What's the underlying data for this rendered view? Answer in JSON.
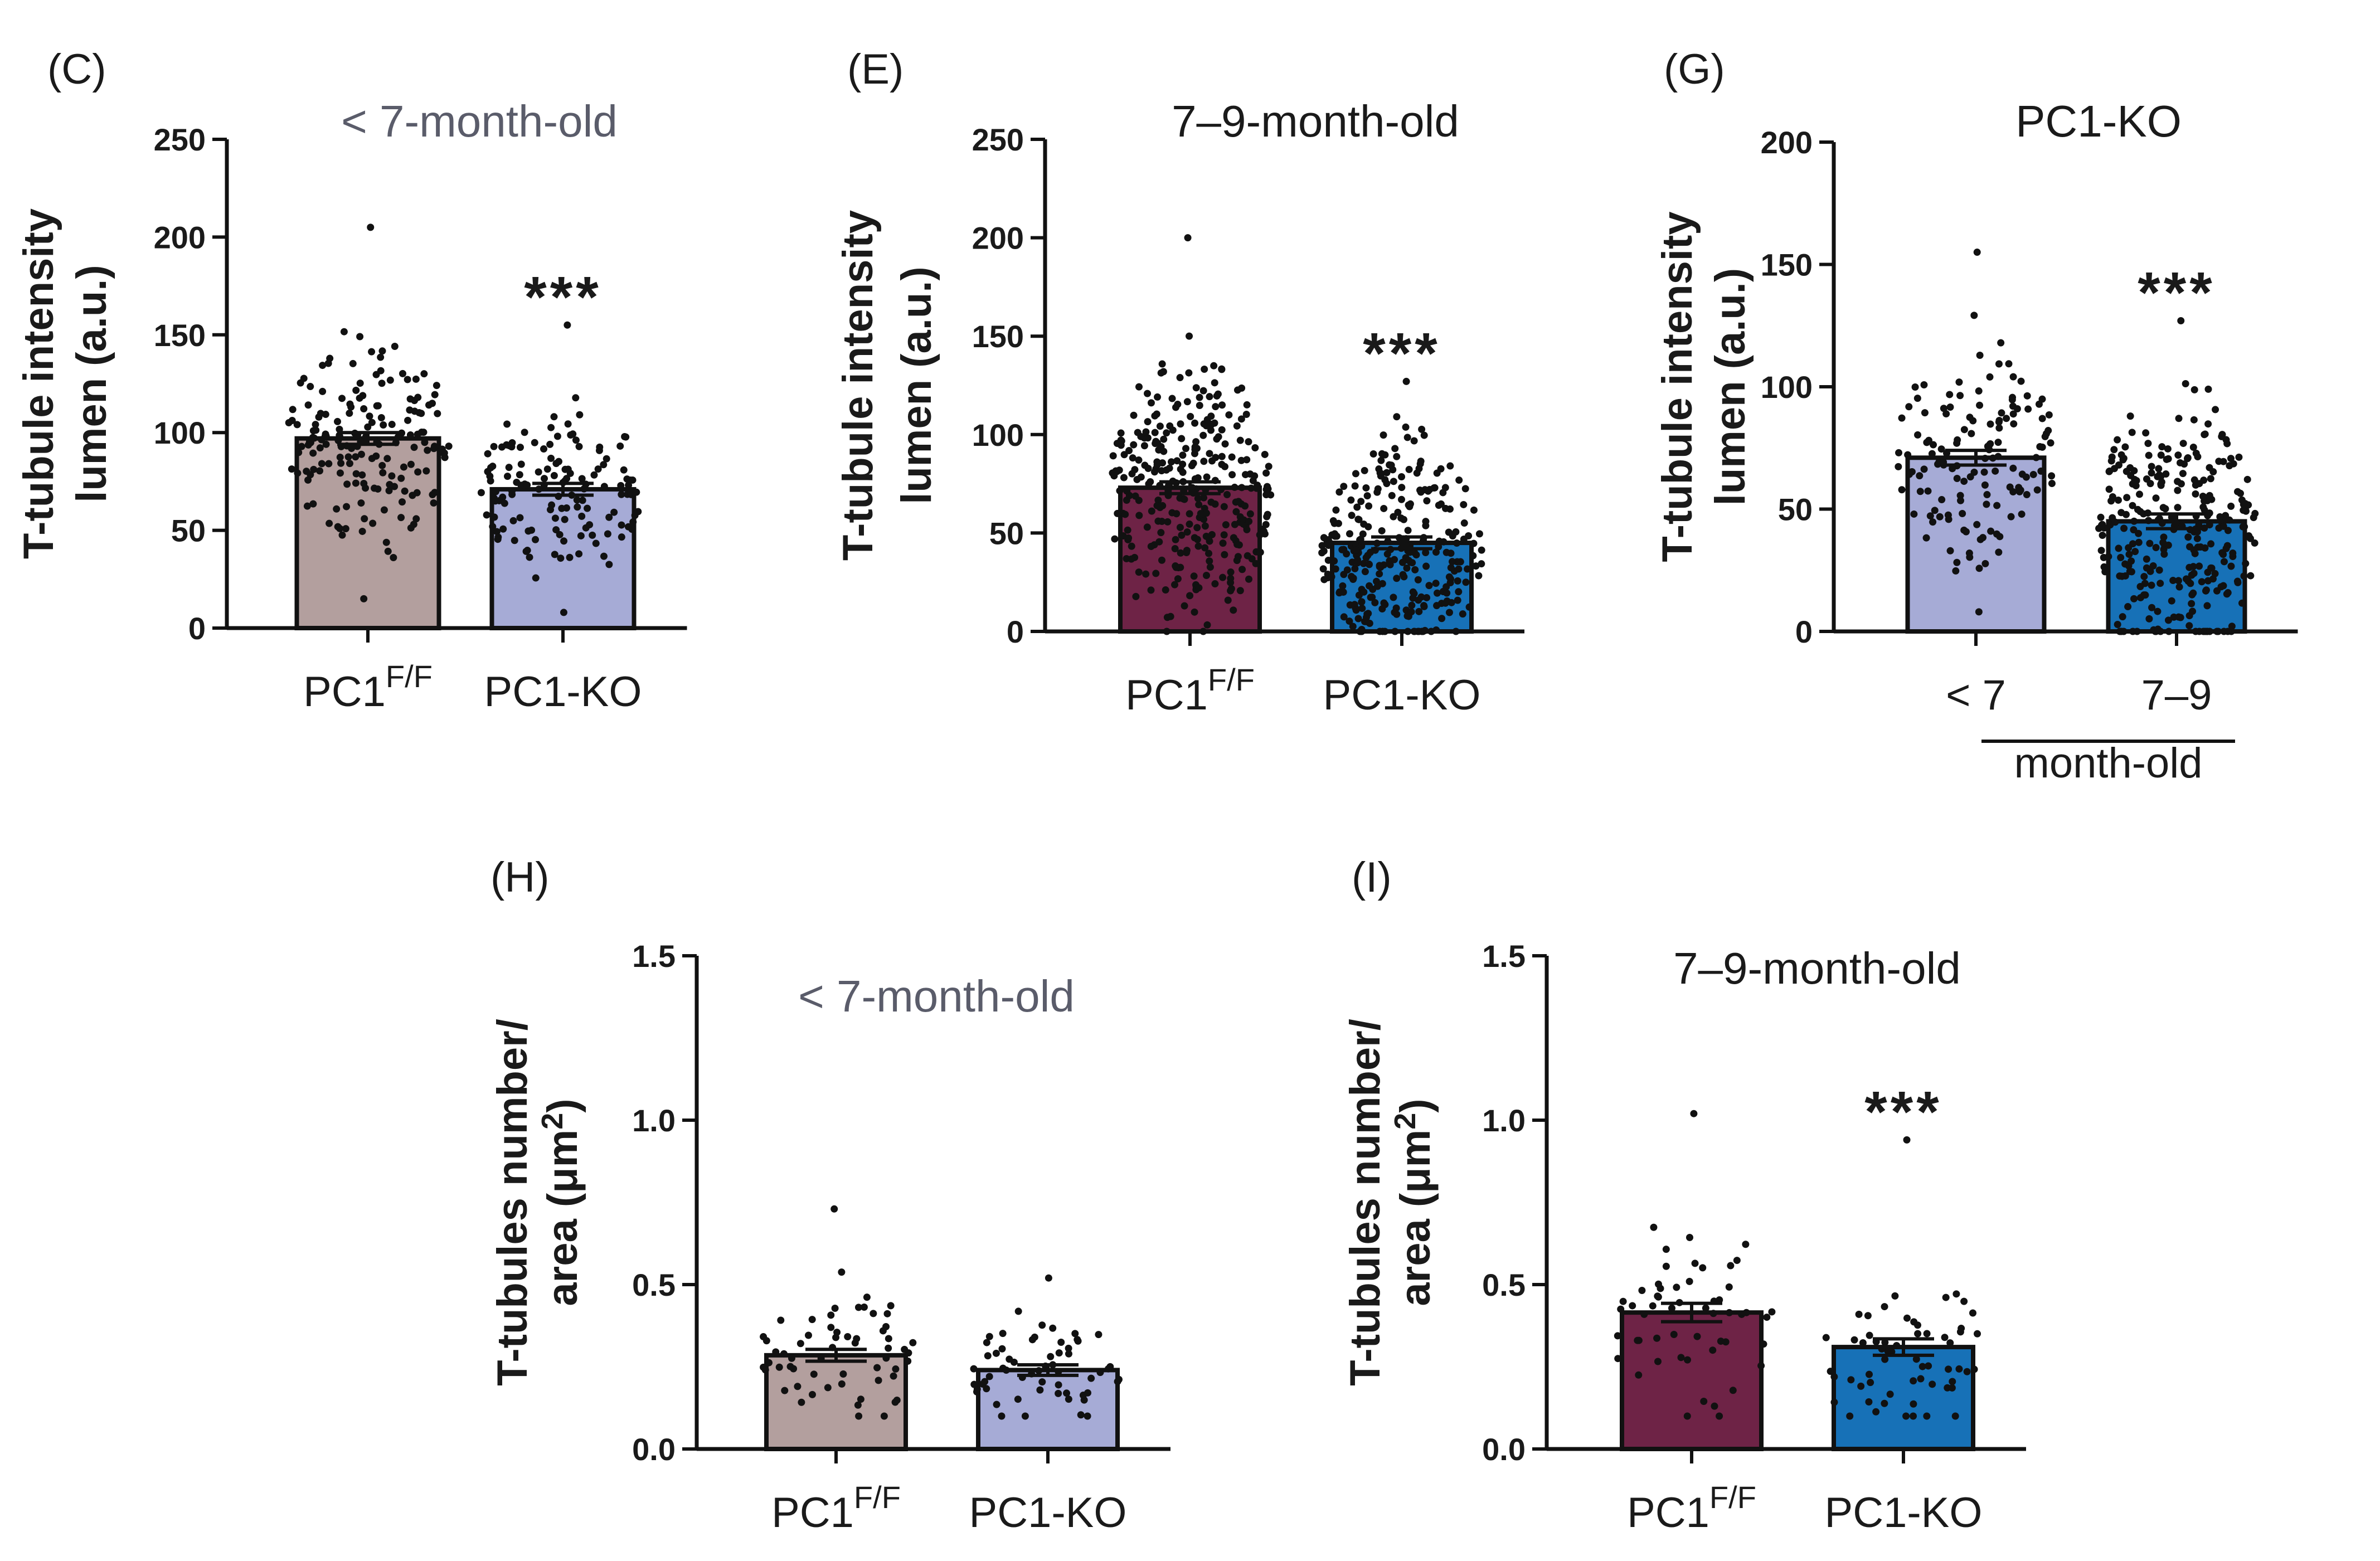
{
  "colors": {
    "taupe": "#b39f9e",
    "lavender": "#a6abd6",
    "maroon": "#6e2346",
    "blue": "#1771b7"
  },
  "chart_data": [
    {
      "panel": "(C)",
      "type": "bar",
      "title": "< 7-month-old",
      "ylabel": [
        "T-tubule intensity",
        "lumen (a.u.)"
      ],
      "ylim": [
        0,
        250
      ],
      "yticks": [
        0,
        50,
        100,
        150,
        200,
        250
      ],
      "categories": [
        {
          "label": "PC1",
          "sup": "F/F",
          "value": 97,
          "sem": 3,
          "color": "taupe",
          "n": 180,
          "dmin": 15,
          "dmax": 205,
          "center": 95,
          "spread": 30
        },
        {
          "label": "PC1-KO",
          "sup": "",
          "value": 71,
          "sem": 3,
          "color": "lavender",
          "n": 140,
          "dmin": 8,
          "dmax": 155,
          "center": 72,
          "spread": 25
        }
      ],
      "significance": [
        {
          "category": 1,
          "label": "***"
        }
      ]
    },
    {
      "panel": "(E)",
      "type": "bar",
      "title": "7–9-month-old",
      "ylabel": [
        "T-tubule intensity",
        "lumen (a.u.)"
      ],
      "ylim": [
        0,
        250
      ],
      "yticks": [
        0,
        50,
        100,
        150,
        200,
        250
      ],
      "categories": [
        {
          "label": "PC1",
          "sup": "F/F",
          "value": 73,
          "sem": 3,
          "color": "maroon",
          "n": 320,
          "dmin": 0,
          "dmax": 200,
          "center": 70,
          "spread": 38
        },
        {
          "label": "PC1-KO",
          "sup": "",
          "value": 45,
          "sem": 3,
          "color": "blue",
          "n": 300,
          "dmin": 0,
          "dmax": 127,
          "center": 40,
          "spread": 32
        }
      ],
      "significance": [
        {
          "category": 1,
          "label": "***"
        }
      ]
    },
    {
      "panel": "(G)",
      "type": "bar",
      "title": "PC1-KO",
      "ylabel": [
        "T-tubule intensity",
        "lumen (a.u.)"
      ],
      "ylim": [
        0,
        200
      ],
      "yticks": [
        0,
        50,
        100,
        150,
        200
      ],
      "categories": [
        {
          "label": "< 7",
          "sup": "",
          "value": 71,
          "sem": 3,
          "color": "lavender",
          "n": 140,
          "dmin": 8,
          "dmax": 155,
          "center": 72,
          "spread": 25
        },
        {
          "label": "7–9",
          "sup": "",
          "value": 45,
          "sem": 3,
          "color": "blue",
          "n": 300,
          "dmin": 0,
          "dmax": 127,
          "center": 40,
          "spread": 32
        }
      ],
      "group_label": "month-old",
      "significance": [
        {
          "category": 1,
          "label": "***"
        }
      ]
    },
    {
      "panel": "(H)",
      "type": "bar",
      "title": "< 7-month-old",
      "ylabel": [
        "T-tubules number/",
        "area (μm²)"
      ],
      "ylim": [
        0,
        1.5
      ],
      "yticks": [
        "0.0",
        "0.5",
        "1.0",
        "1.5"
      ],
      "categories": [
        {
          "label": "PC1",
          "sup": "F/F",
          "value": 0.285,
          "sem": 0.018,
          "color": "taupe",
          "n": 60,
          "dmin": 0.1,
          "dmax": 0.73,
          "center": 0.28,
          "spread": 0.12
        },
        {
          "label": "PC1-KO",
          "sup": "",
          "value": 0.24,
          "sem": 0.016,
          "color": "lavender",
          "n": 60,
          "dmin": 0.1,
          "dmax": 0.52,
          "center": 0.24,
          "spread": 0.1
        }
      ],
      "significance": []
    },
    {
      "panel": "(I)",
      "type": "bar",
      "title": "7–9-month-old",
      "ylabel": [
        "T-tubules number/",
        "area (μm²)"
      ],
      "ylim": [
        0,
        1.5
      ],
      "yticks": [
        "0.0",
        "0.5",
        "1.0",
        "1.5"
      ],
      "categories": [
        {
          "label": "PC1",
          "sup": "F/F",
          "value": 0.415,
          "sem": 0.028,
          "color": "maroon",
          "n": 55,
          "dmin": 0.1,
          "dmax": 1.02,
          "center": 0.4,
          "spread": 0.18
        },
        {
          "label": "PC1-KO",
          "sup": "",
          "value": 0.31,
          "sem": 0.025,
          "color": "blue",
          "n": 60,
          "dmin": 0.1,
          "dmax": 0.94,
          "center": 0.28,
          "spread": 0.16
        }
      ],
      "significance": [
        {
          "category": 1,
          "label": "***"
        }
      ]
    }
  ]
}
